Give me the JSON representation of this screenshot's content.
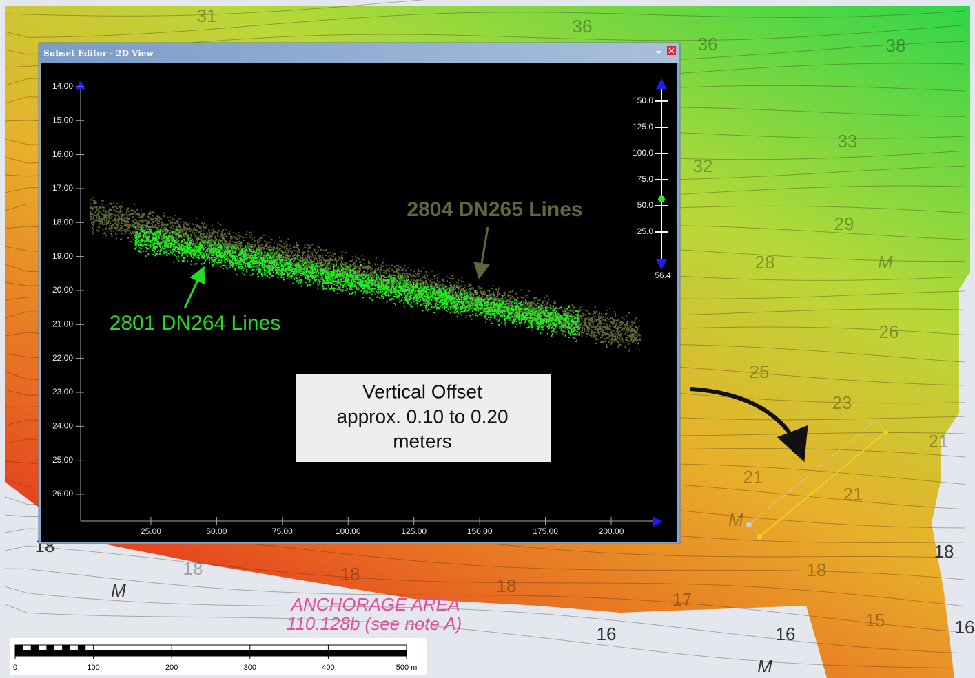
{
  "window": {
    "title": "Subset Editor - 2D View"
  },
  "plot": {
    "ylim": [
      13.88,
      26.79
    ],
    "yticks": [
      {
        "value": 14,
        "label": "14.00"
      },
      {
        "value": 15,
        "label": "15.00"
      },
      {
        "value": 16,
        "label": "16.00"
      },
      {
        "value": 17,
        "label": "17.00"
      },
      {
        "value": 18,
        "label": "18.00"
      },
      {
        "value": 19,
        "label": "19.00"
      },
      {
        "value": 20,
        "label": "20.00"
      },
      {
        "value": 21,
        "label": "21.00"
      },
      {
        "value": 22,
        "label": "22.00"
      },
      {
        "value": 23,
        "label": "23.00"
      },
      {
        "value": 24,
        "label": "24.00"
      },
      {
        "value": 25,
        "label": "25.00"
      },
      {
        "value": 26,
        "label": "26.00"
      }
    ],
    "xlim": [
      -1.7,
      217.8
    ],
    "xticks": [
      {
        "value": 25,
        "label": "25.00"
      },
      {
        "value": 50,
        "label": "50.00"
      },
      {
        "value": 75,
        "label": "75.00"
      },
      {
        "value": 100,
        "label": "100.00"
      },
      {
        "value": 125,
        "label": "125.00"
      },
      {
        "value": 150,
        "label": "150.00"
      },
      {
        "value": 175,
        "label": "175.00"
      },
      {
        "value": 200,
        "label": "200.00"
      }
    ],
    "annotations": [
      "2804 DN265 Lines",
      "2801 DN264 Lines"
    ],
    "note": [
      "Vertical Offset",
      "approx. 0.10 to 0.20",
      "meters"
    ]
  },
  "slider": {
    "lim": [
      -6.6,
      166.4
    ],
    "ticks": [
      {
        "value": 150,
        "label": "150.0"
      },
      {
        "value": 125,
        "label": "125.0"
      },
      {
        "value": 100,
        "label": "100.0"
      },
      {
        "value": 75,
        "label": "75.0"
      },
      {
        "value": 50,
        "label": "50.0"
      },
      {
        "value": 25,
        "label": "25.0"
      }
    ],
    "current": 56.4
  },
  "map": {
    "labels": [
      "31",
      "36",
      "36",
      "38",
      "33",
      "32",
      "29",
      "28",
      "M",
      "26",
      "25",
      "23",
      "21",
      "21",
      "21",
      "M",
      "18",
      "18",
      "18",
      "18",
      "18",
      "18",
      "17",
      "16",
      "16",
      "15",
      "16",
      "M",
      "M",
      "ANCHORAGE AREA",
      "110.128b (see note A)"
    ],
    "scale_bar": [
      0,
      100,
      200,
      300,
      400,
      {
        "value": 500,
        "label": "500 m"
      }
    ]
  }
}
